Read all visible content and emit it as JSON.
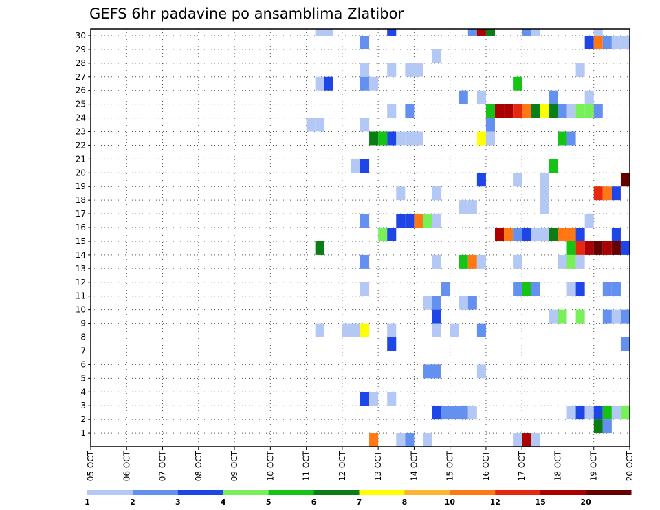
{
  "chart_data": {
    "type": "heatmap",
    "title": "GEFS 6hr padavine po ansamblima Zlatibor",
    "x_ticks": [
      "05 OCT",
      "06 OCT",
      "07 OCT",
      "08 OCT",
      "09 OCT",
      "10 OCT",
      "11 OCT",
      "12 OCT",
      "13 OCT",
      "14 OCT",
      "15 OCT",
      "16 OCT",
      "17 OCT",
      "18 OCT",
      "19 OCT",
      "20 OCT"
    ],
    "y_ticks": [
      "1",
      "2",
      "3",
      "4",
      "5",
      "6",
      "7",
      "8",
      "9",
      "10",
      "11",
      "12",
      "13",
      "14",
      "15",
      "16",
      "17",
      "18",
      "19",
      "20",
      "21",
      "22",
      "23",
      "24",
      "25",
      "26",
      "27",
      "28",
      "29",
      "30"
    ],
    "x_range_days": [
      0,
      15
    ],
    "y_range": [
      0,
      30
    ],
    "grid": true,
    "colorbar": {
      "ticks": [
        "1",
        "2",
        "3",
        "4",
        "5",
        "6",
        "7",
        "8",
        "10",
        "12",
        "15",
        "20"
      ],
      "colors": [
        "#b4c8f5",
        "#6490f0",
        "#1e46e6",
        "#78f05a",
        "#14c314",
        "#0a7d14",
        "#ffff00",
        "#ffb432",
        "#ff7814",
        "#e6280f",
        "#aa0000",
        "#640000"
      ]
    },
    "cells": [
      [
        30,
        "10/11 06",
        1
      ],
      [
        30,
        "10/11 12",
        1
      ],
      [
        30,
        "10/13 06",
        3
      ],
      [
        30,
        "10/15 12",
        2
      ],
      [
        30,
        "10/15 18",
        15
      ],
      [
        30,
        "10/16 00",
        6
      ],
      [
        30,
        "10/17 00",
        2
      ],
      [
        30,
        "10/17 06",
        1
      ],
      [
        30,
        "10/19 00",
        1
      ],
      [
        29,
        "10/12 12",
        2
      ],
      [
        29,
        "10/18 18",
        3
      ],
      [
        29,
        "10/19 00",
        10
      ],
      [
        29,
        "10/19 06",
        2
      ],
      [
        29,
        "10/19 12",
        1
      ],
      [
        29,
        "10/19 18",
        1
      ],
      [
        28,
        "10/14 12",
        1
      ],
      [
        27,
        "10/12 12",
        1
      ],
      [
        27,
        "10/13 06",
        1
      ],
      [
        27,
        "10/13 18",
        1
      ],
      [
        27,
        "10/14 00",
        1
      ],
      [
        27,
        "10/18 12",
        1
      ],
      [
        26,
        "10/11 06",
        1
      ],
      [
        26,
        "10/11 12",
        3
      ],
      [
        26,
        "10/12 12",
        2
      ],
      [
        26,
        "10/12 18",
        1
      ],
      [
        26,
        "10/16 18",
        5
      ],
      [
        25,
        "10/15 06",
        2
      ],
      [
        25,
        "10/15 18",
        1
      ],
      [
        25,
        "10/17 18",
        2
      ],
      [
        25,
        "10/18 18",
        1
      ],
      [
        24,
        "10/13 06",
        1
      ],
      [
        24,
        "10/13 18",
        2
      ],
      [
        24,
        "10/16 00",
        5
      ],
      [
        24,
        "10/16 06",
        15
      ],
      [
        24,
        "10/16 12",
        15
      ],
      [
        24,
        "10/16 18",
        12
      ],
      [
        24,
        "10/17 00",
        10
      ],
      [
        24,
        "10/17 06",
        6
      ],
      [
        24,
        "10/17 12",
        7
      ],
      [
        24,
        "10/17 18",
        6
      ],
      [
        24,
        "10/18 00",
        2
      ],
      [
        24,
        "10/18 06",
        1
      ],
      [
        24,
        "10/18 12",
        4
      ],
      [
        24,
        "10/18 18",
        4
      ],
      [
        24,
        "10/19 00",
        2
      ],
      [
        23,
        "10/11 00",
        1
      ],
      [
        23,
        "10/11 06",
        1
      ],
      [
        23,
        "10/12 12",
        1
      ],
      [
        23,
        "10/16 00",
        2
      ],
      [
        22,
        "10/12 18",
        6
      ],
      [
        22,
        "10/13 00",
        5
      ],
      [
        22,
        "10/13 06",
        3
      ],
      [
        22,
        "10/13 12",
        1
      ],
      [
        22,
        "10/13 18",
        1
      ],
      [
        22,
        "10/14 00",
        1
      ],
      [
        22,
        "10/15 18",
        7
      ],
      [
        22,
        "10/16 00",
        1
      ],
      [
        22,
        "10/18 00",
        5
      ],
      [
        22,
        "10/18 06",
        2
      ],
      [
        20,
        "10/12 06",
        1
      ],
      [
        20,
        "10/12 12",
        3
      ],
      [
        20,
        "10/17 18",
        5
      ],
      [
        19,
        "10/15 18",
        3
      ],
      [
        19,
        "10/16 18",
        1
      ],
      [
        19,
        "10/17 12",
        1
      ],
      [
        19,
        "10/19 18",
        20
      ],
      [
        18,
        "10/13 12",
        1
      ],
      [
        18,
        "10/14 12",
        1
      ],
      [
        18,
        "10/17 12",
        1
      ],
      [
        18,
        "10/19 00",
        12
      ],
      [
        18,
        "10/19 06",
        10
      ],
      [
        18,
        "10/19 12",
        3
      ],
      [
        17,
        "10/15 06",
        1
      ],
      [
        17,
        "10/15 12",
        1
      ],
      [
        17,
        "10/17 12",
        1
      ],
      [
        16,
        "10/12 12",
        2
      ],
      [
        16,
        "10/13 12",
        3
      ],
      [
        16,
        "10/13 18",
        3
      ],
      [
        16,
        "10/14 00",
        10
      ],
      [
        16,
        "10/14 06",
        4
      ],
      [
        16,
        "10/14 12",
        1
      ],
      [
        16,
        "10/18 18",
        1
      ],
      [
        15,
        "10/13 00",
        4
      ],
      [
        15,
        "10/13 06",
        3
      ],
      [
        15,
        "10/16 06",
        15
      ],
      [
        15,
        "10/16 12",
        10
      ],
      [
        15,
        "10/16 18",
        2
      ],
      [
        15,
        "10/17 00",
        3
      ],
      [
        15,
        "10/17 06",
        1
      ],
      [
        15,
        "10/17 12",
        1
      ],
      [
        15,
        "10/17 18",
        6
      ],
      [
        15,
        "10/18 00",
        10
      ],
      [
        15,
        "10/18 06",
        10
      ],
      [
        15,
        "10/18 12",
        3
      ],
      [
        15,
        "10/19 12",
        3
      ],
      [
        14,
        "10/11 06",
        6
      ],
      [
        14,
        "10/18 06",
        5
      ],
      [
        14,
        "10/18 12",
        12
      ],
      [
        14,
        "10/18 18",
        15
      ],
      [
        14,
        "10/19 00",
        20
      ],
      [
        14,
        "10/19 06",
        15
      ],
      [
        14,
        "10/19 12",
        20
      ],
      [
        14,
        "10/19 18",
        3
      ],
      [
        13,
        "10/12 12",
        2
      ],
      [
        13,
        "10/14 12",
        1
      ],
      [
        13,
        "10/15 06",
        5
      ],
      [
        13,
        "10/15 12",
        10
      ],
      [
        13,
        "10/15 18",
        1
      ],
      [
        13,
        "10/16 18",
        1
      ],
      [
        13,
        "10/18 00",
        1
      ],
      [
        13,
        "10/18 06",
        4
      ],
      [
        13,
        "10/18 12",
        1
      ],
      [
        11,
        "10/12 12",
        1
      ],
      [
        11,
        "10/14 18",
        2
      ],
      [
        11,
        "10/16 18",
        2
      ],
      [
        11,
        "10/17 00",
        5
      ],
      [
        11,
        "10/17 06",
        2
      ],
      [
        11,
        "10/18 06",
        1
      ],
      [
        11,
        "10/18 12",
        3
      ],
      [
        11,
        "10/19 06",
        2
      ],
      [
        11,
        "10/19 12",
        2
      ],
      [
        10,
        "10/14 06",
        1
      ],
      [
        10,
        "10/14 12",
        2
      ],
      [
        10,
        "10/15 06",
        1
      ],
      [
        10,
        "10/15 12",
        2
      ],
      [
        9,
        "10/14 12",
        3
      ],
      [
        9,
        "10/17 18",
        1
      ],
      [
        9,
        "10/18 00",
        4
      ],
      [
        9,
        "10/18 12",
        4
      ],
      [
        9,
        "10/19 06",
        2
      ],
      [
        9,
        "10/19 12",
        1
      ],
      [
        9,
        "10/19 18",
        2
      ],
      [
        8,
        "10/12 00",
        1
      ],
      [
        8,
        "10/12 06",
        1
      ],
      [
        8,
        "10/12 12",
        7
      ],
      [
        8,
        "10/13 06",
        1
      ],
      [
        8,
        "10/14 12",
        1
      ],
      [
        8,
        "10/15 00",
        1
      ],
      [
        8,
        "10/15 18",
        2
      ],
      [
        8,
        "10/11 06",
        1
      ],
      [
        7,
        "10/13 06",
        3
      ],
      [
        7,
        "10/19 18",
        2
      ],
      [
        5,
        "10/14 06",
        2
      ],
      [
        5,
        "10/14 12",
        2
      ],
      [
        5,
        "10/15 18",
        1
      ],
      [
        3,
        "10/12 12",
        3
      ],
      [
        3,
        "10/12 18",
        1
      ],
      [
        3,
        "10/13 06",
        1
      ],
      [
        2,
        "10/14 12",
        3
      ],
      [
        2,
        "10/14 18",
        2
      ],
      [
        2,
        "10/15 00",
        2
      ],
      [
        2,
        "10/15 06",
        2
      ],
      [
        2,
        "10/15 12",
        1
      ],
      [
        2,
        "10/18 06",
        1
      ],
      [
        2,
        "10/18 12",
        3
      ],
      [
        2,
        "10/18 18",
        1
      ],
      [
        2,
        "10/19 00",
        3
      ],
      [
        2,
        "10/19 06",
        5
      ],
      [
        2,
        "10/19 12",
        1
      ],
      [
        2,
        "10/19 18",
        4
      ],
      [
        1,
        "10/19 00",
        6
      ],
      [
        1,
        "10/19 06",
        2
      ],
      [
        0,
        "10/12 18",
        10
      ],
      [
        0,
        "10/13 12",
        1
      ],
      [
        0,
        "10/13 18",
        2
      ],
      [
        0,
        "10/14 06",
        1
      ],
      [
        0,
        "10/16 18",
        1
      ],
      [
        0,
        "10/17 00",
        15
      ],
      [
        0,
        "10/17 06",
        1
      ]
    ]
  }
}
